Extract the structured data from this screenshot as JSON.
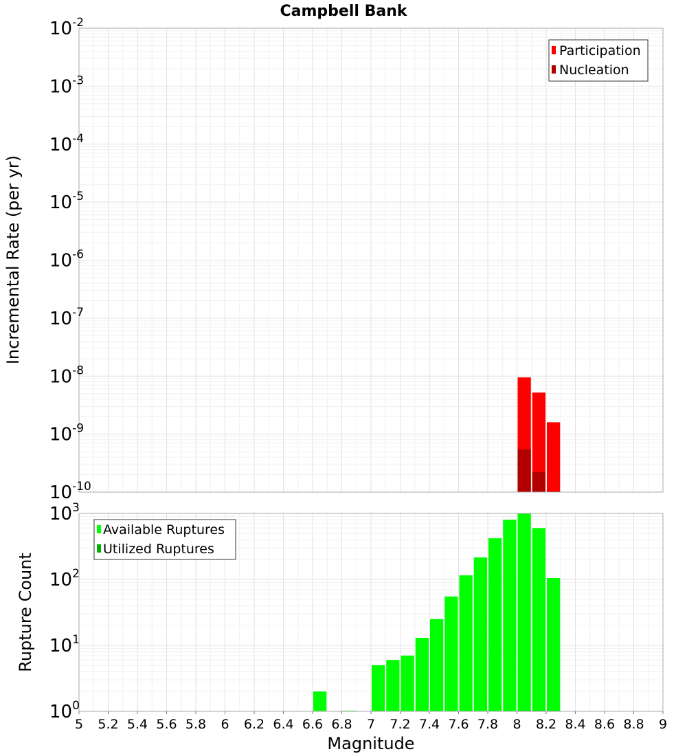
{
  "chart_data": [
    {
      "type": "bar",
      "title": "Campbell Bank",
      "xlabel": "Magnitude",
      "ylabel": "Incremental Rate (per yr)",
      "yscale": "log",
      "ylim_exponent": [
        -10,
        -2
      ],
      "xlim": [
        5,
        9
      ],
      "bar_width": 0.1,
      "grid": true,
      "legend_position": "top-right",
      "series": [
        {
          "name": "Participation",
          "color": "#ff0000",
          "points": [
            {
              "x": 8.05,
              "y": 9.5e-09
            },
            {
              "x": 8.15,
              "y": 5.2e-09
            },
            {
              "x": 8.25,
              "y": 1.6e-09
            }
          ]
        },
        {
          "name": "Nucleation",
          "color": "#b20000",
          "points": [
            {
              "x": 8.05,
              "y": 5.5e-10
            },
            {
              "x": 8.15,
              "y": 2.2e-10
            },
            {
              "x": 8.25,
              "y": 1e-10
            }
          ]
        }
      ]
    },
    {
      "type": "bar",
      "xlabel": "Magnitude",
      "ylabel": "Rupture Count",
      "yscale": "log",
      "ylim_exponent": [
        0,
        3
      ],
      "xlim": [
        5,
        9
      ],
      "bar_width": 0.1,
      "grid": true,
      "legend_position": "top-left",
      "series": [
        {
          "name": "Available Ruptures",
          "color": "#00ff00",
          "points": [
            {
              "x": 6.65,
              "y": 2
            },
            {
              "x": 6.85,
              "y": 1
            },
            {
              "x": 7.05,
              "y": 5
            },
            {
              "x": 7.15,
              "y": 6
            },
            {
              "x": 7.25,
              "y": 7
            },
            {
              "x": 7.35,
              "y": 13
            },
            {
              "x": 7.45,
              "y": 25
            },
            {
              "x": 7.55,
              "y": 55
            },
            {
              "x": 7.65,
              "y": 115
            },
            {
              "x": 7.75,
              "y": 215
            },
            {
              "x": 7.85,
              "y": 420
            },
            {
              "x": 7.95,
              "y": 800
            },
            {
              "x": 8.05,
              "y": 1000
            },
            {
              "x": 8.15,
              "y": 600
            },
            {
              "x": 8.25,
              "y": 105
            }
          ]
        },
        {
          "name": "Utilized Ruptures",
          "color": "#00b000",
          "points": [
            {
              "x": 8.05,
              "y": 1
            },
            {
              "x": 8.15,
              "y": 1
            },
            {
              "x": 8.25,
              "y": 1
            }
          ]
        }
      ]
    }
  ],
  "x_ticks": [
    "5",
    "5.2",
    "5.4",
    "5.6",
    "5.8",
    "6",
    "6.2",
    "6.4",
    "6.6",
    "6.8",
    "7",
    "7.2",
    "7.4",
    "7.6",
    "7.8",
    "8",
    "8.2",
    "8.4",
    "8.6",
    "8.8",
    "9"
  ],
  "top_y_ticks": [
    {
      "base": "10",
      "exp": "-2"
    },
    {
      "base": "10",
      "exp": "-3"
    },
    {
      "base": "10",
      "exp": "-4"
    },
    {
      "base": "10",
      "exp": "-5"
    },
    {
      "base": "10",
      "exp": "-6"
    },
    {
      "base": "10",
      "exp": "-7"
    },
    {
      "base": "10",
      "exp": "-8"
    },
    {
      "base": "10",
      "exp": "-9"
    },
    {
      "base": "10",
      "exp": "-10"
    }
  ],
  "bottom_y_ticks": [
    {
      "base": "10",
      "exp": "3"
    },
    {
      "base": "10",
      "exp": "2"
    },
    {
      "base": "10",
      "exp": "1"
    },
    {
      "base": "10",
      "exp": "0"
    }
  ]
}
